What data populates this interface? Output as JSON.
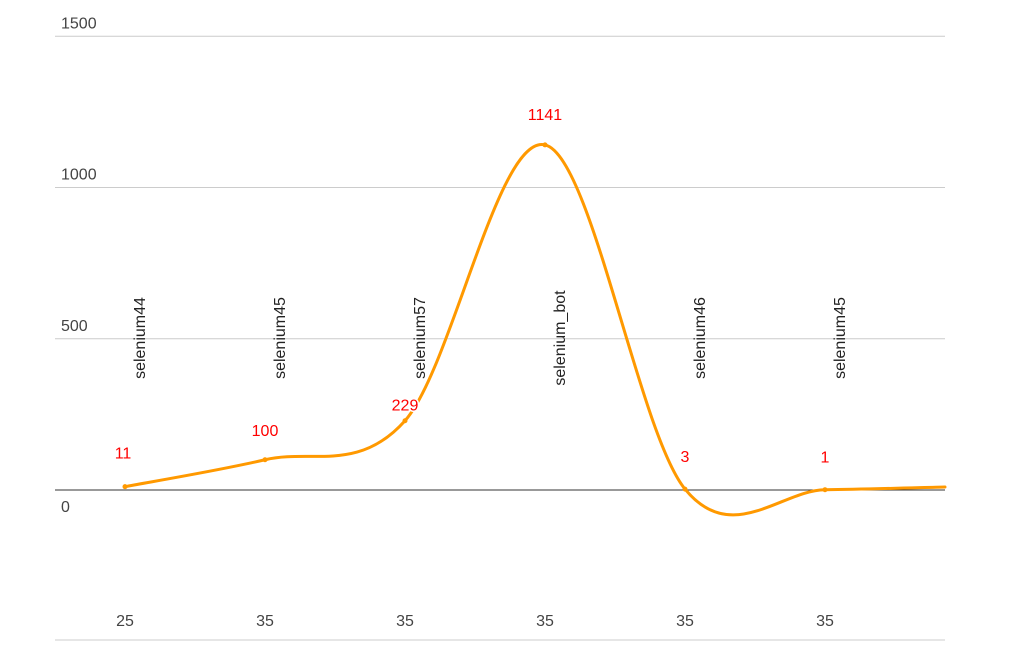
{
  "chart_data": {
    "type": "line",
    "x": [
      "25",
      "35",
      "35",
      "35",
      "35",
      "35"
    ],
    "categories": [
      "selenium44",
      "selenium45",
      "selenium57",
      "selenium_bot",
      "selenium46",
      "selenium45"
    ],
    "series": [
      {
        "values": [
          11,
          100,
          229,
          1141,
          3,
          1
        ]
      }
    ],
    "data_labels": [
      "11",
      "100",
      "229",
      "1141",
      "3",
      "1"
    ],
    "trailing_value": 10,
    "ylim": [
      -500,
      1500
    ],
    "yticks": [
      0,
      500,
      1000,
      1500
    ],
    "ytick_labels": [
      "0",
      "500",
      "1000",
      "1500"
    ],
    "grid": true,
    "smooth": true,
    "colors": {
      "series": "#ff9900",
      "labels": "#ff0000",
      "grid": "#cccccc",
      "baseline": "#333333"
    }
  }
}
